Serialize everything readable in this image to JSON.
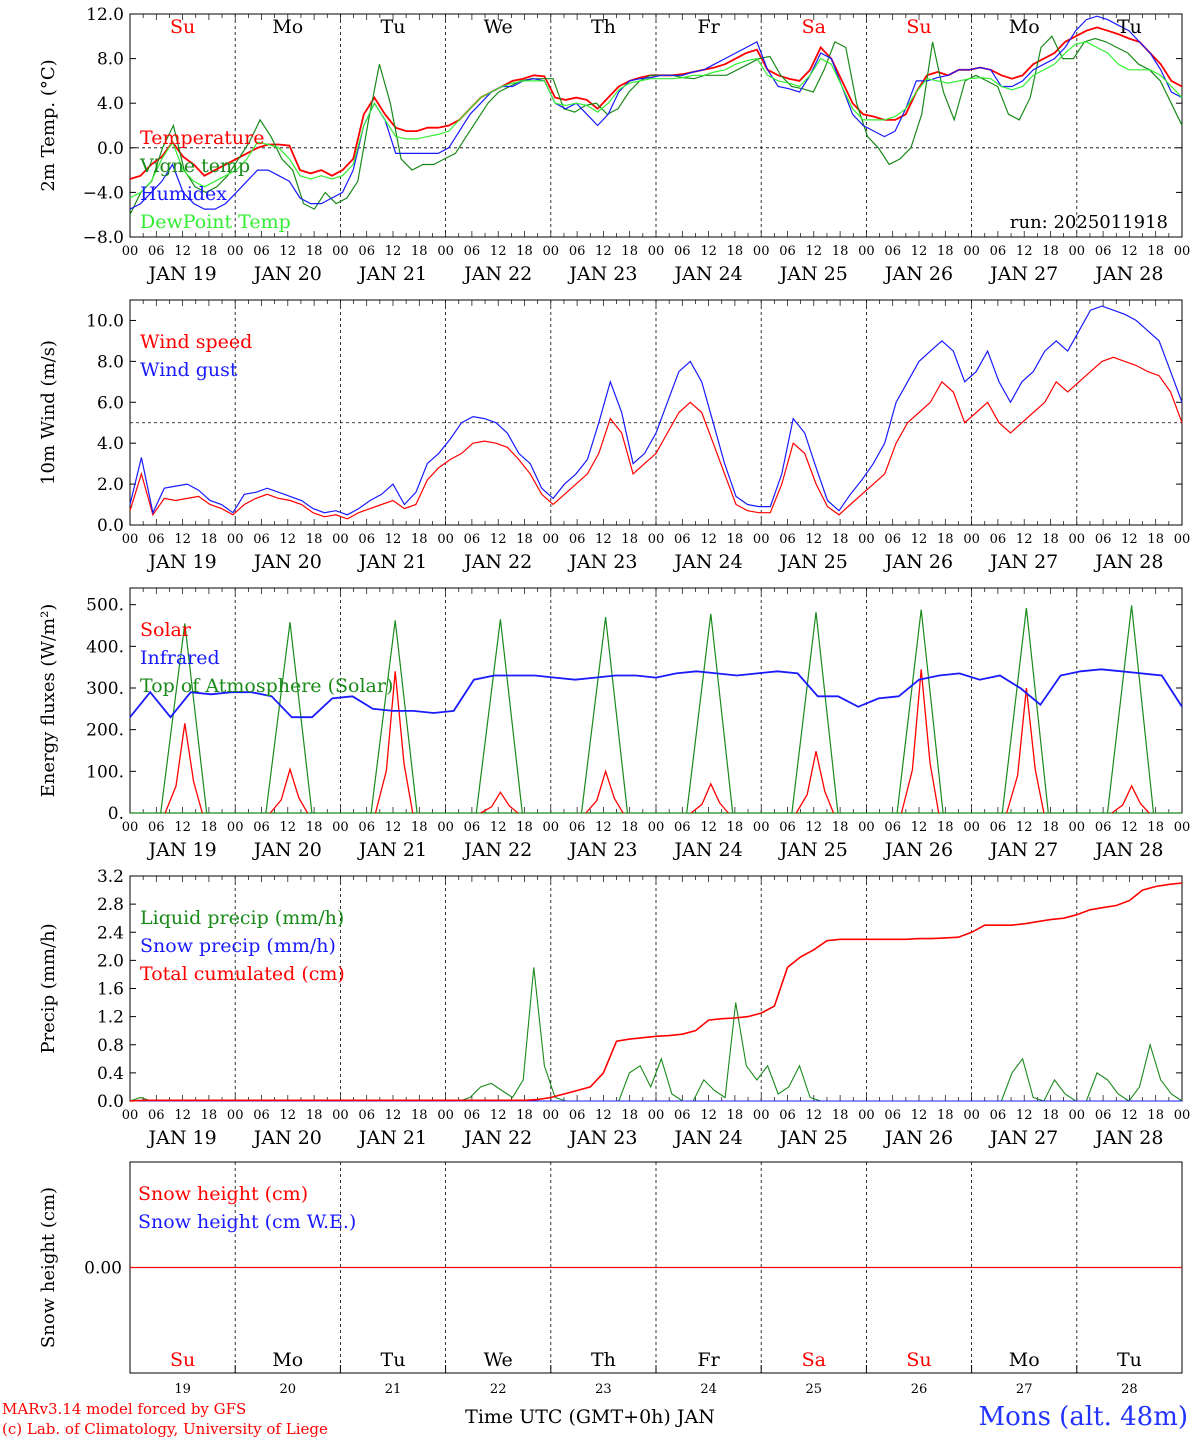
{
  "run_label": "run: 2025011918",
  "footer": {
    "credit_line1": "MARv3.14 model forced by GFS",
    "credit_line2": "(c) Lab. of Climatology, University of Liege",
    "xlabel": "Time UTC (GMT+0h) JAN",
    "station": "Mons (alt. 48m)"
  },
  "days": {
    "names": [
      "Su",
      "Mo",
      "Tu",
      "We",
      "Th",
      "Fr",
      "Sa",
      "Su",
      "Mo",
      "Tu"
    ],
    "weekend_flags": [
      true,
      false,
      false,
      false,
      false,
      false,
      true,
      true,
      false,
      false
    ],
    "dates": [
      "JAN 19",
      "JAN 20",
      "JAN 21",
      "JAN 22",
      "JAN 23",
      "JAN 24",
      "JAN 25",
      "JAN 26",
      "JAN 27",
      "JAN 28"
    ],
    "day_numbers": [
      "19",
      "20",
      "21",
      "22",
      "23",
      "24",
      "25",
      "26",
      "27",
      "28"
    ],
    "hour_ticks": [
      "00",
      "06",
      "12",
      "18"
    ],
    "end_tick": "00"
  },
  "colors": {
    "red": "#ff0000",
    "dark_green": "#1a8a1a",
    "blue": "#1a1aff",
    "light_green": "#33ee33",
    "weekend": "#ff0000",
    "weekday": "#000000"
  },
  "chart_data": [
    {
      "type": "line",
      "ylabel": "2m Temp. (°C)",
      "ylim": [
        -8,
        12
      ],
      "yticks": [
        "12.0",
        "8.0",
        "4.0",
        "0.0",
        "−4.0",
        "−8.0"
      ],
      "ref_line": 0,
      "x_hours_step": 3,
      "series": [
        {
          "name": "Temperature",
          "color": "#ff0000",
          "values": [
            -2.8,
            -2.5,
            -1.5,
            -0.8,
            0.5,
            -0.8,
            -1.5,
            -2.5,
            -2,
            -1.5,
            -1,
            -0.5,
            0,
            0.3,
            0.3,
            0.2,
            -2,
            -2.3,
            -2,
            -2.5,
            -2,
            -1,
            3,
            4.5,
            3,
            1.8,
            1.5,
            1.5,
            1.8,
            1.8,
            2,
            2.5,
            3.5,
            4.5,
            5,
            5.5,
            6,
            6.2,
            6.5,
            6.4,
            4.5,
            4.3,
            4.5,
            4.3,
            3.5,
            4.5,
            5.5,
            6,
            6.3,
            6.5,
            6.5,
            6.5,
            6.6,
            6.8,
            7,
            7.2,
            7.5,
            8,
            8.5,
            8.8,
            7,
            6.5,
            6.2,
            6,
            7,
            9,
            8,
            6,
            4,
            3,
            2.8,
            2.5,
            2.5,
            3,
            5,
            6.5,
            6.8,
            6.5,
            7,
            7,
            7.2,
            7,
            6.5,
            6.2,
            6.5,
            7.5,
            8,
            8.5,
            9.5,
            10,
            10.5,
            10.8,
            10.5,
            10.2,
            9.8,
            9.5,
            8.5,
            7.5,
            6,
            5.5
          ]
        },
        {
          "name": "Vigne temp",
          "color": "#1a8a1a",
          "values": [
            -6,
            -4,
            -3,
            0,
            2,
            -2,
            -3.5,
            -4,
            -3.5,
            -2.5,
            -1,
            0.5,
            2.5,
            1,
            -1,
            -2,
            -5,
            -5.5,
            -4,
            -5,
            -4.5,
            -3,
            2.5,
            7.5,
            4,
            -1,
            -2,
            -1.5,
            -1.5,
            -1,
            -0.5,
            1,
            2.5,
            4,
            5,
            5.5,
            6,
            6.2,
            6.2,
            6.2,
            3.5,
            3.2,
            3.8,
            4,
            3,
            3.5,
            5,
            6,
            6.5,
            6.5,
            6.5,
            6.3,
            6.2,
            6.5,
            6.5,
            6.5,
            7,
            7.5,
            8,
            8.2,
            6.5,
            5.5,
            5.3,
            5,
            7,
            9.5,
            9,
            4,
            1,
            0,
            -1.5,
            -1,
            0,
            3,
            9.5,
            5,
            2.5,
            6,
            6.5,
            6,
            5.5,
            3,
            2.5,
            4.5,
            9,
            10,
            8,
            8,
            9.5,
            9.8,
            9.5,
            9,
            8.5,
            7.5,
            7,
            6,
            4,
            2
          ]
        },
        {
          "name": "Humidex",
          "color": "#1a1aff",
          "values": [
            -5.5,
            -5,
            -4,
            -3,
            -1.5,
            -4,
            -5,
            -5.5,
            -5.5,
            -5,
            -4,
            -3,
            -2,
            -2,
            -2.5,
            -3,
            -4.5,
            -5,
            -5,
            -4.5,
            -4,
            -2,
            2,
            4,
            2.5,
            -0.5,
            -0.5,
            -0.5,
            -0.5,
            -0.5,
            0,
            1.5,
            3,
            4,
            5,
            5.5,
            5.5,
            6,
            6.2,
            6,
            4,
            3.5,
            4,
            3,
            2,
            3,
            5,
            6,
            6.2,
            6.3,
            6.5,
            6.5,
            6.5,
            6.8,
            7,
            7.5,
            8,
            8.5,
            9,
            9.5,
            7,
            5.5,
            5.3,
            5,
            6.5,
            8.5,
            8,
            5.5,
            3,
            2,
            1.5,
            1,
            1.5,
            3.5,
            6,
            6,
            6.3,
            6.5,
            7,
            7,
            7.2,
            7,
            5.5,
            5.5,
            6,
            7,
            7.5,
            8,
            9,
            10.5,
            11.5,
            11.8,
            11.5,
            11,
            10.5,
            9.5,
            8.5,
            7,
            5,
            4.5
          ]
        },
        {
          "name": "DewPoint Temp",
          "color": "#33ee33",
          "values": [
            -4.5,
            -4,
            -3,
            -1,
            0.5,
            -2,
            -3,
            -3.5,
            -3,
            -2.5,
            -2,
            -1,
            0.5,
            0.3,
            0,
            -1,
            -2.5,
            -2.8,
            -2.5,
            -2.8,
            -2.5,
            -1.5,
            2,
            4,
            2.5,
            1,
            0.8,
            0.8,
            1,
            1.2,
            1.5,
            2.5,
            3.5,
            4.5,
            5,
            5.5,
            5.8,
            6,
            6,
            6,
            4,
            3.8,
            4,
            3.8,
            3.2,
            4,
            5.2,
            5.8,
            6,
            6.2,
            6.2,
            6.2,
            6.3,
            6.5,
            6.5,
            6.8,
            7,
            7.5,
            7.8,
            8,
            6.5,
            6,
            5.8,
            5.5,
            6.5,
            8,
            7.5,
            5.5,
            3.5,
            2.5,
            2.5,
            2.5,
            2.8,
            3.5,
            5,
            6.2,
            6,
            5.8,
            6,
            6.2,
            6.3,
            6.2,
            5.5,
            5.2,
            5.5,
            6.5,
            7,
            7.5,
            8.5,
            9.3,
            9.5,
            9,
            8.5,
            7.5,
            7,
            7,
            7,
            6.5,
            5.5,
            4.5
          ]
        }
      ],
      "legend": [
        "Temperature",
        "Vigne temp",
        "Humidex",
        "DewPoint Temp"
      ],
      "legend_colors": [
        "#ff0000",
        "#1a8a1a",
        "#1a1aff",
        "#33ee33"
      ]
    },
    {
      "type": "line",
      "ylabel": "10m Wind (m/s)",
      "ylim": [
        0,
        11
      ],
      "yticks": [
        "10.0",
        "8.0",
        "6.0",
        "4.0",
        "2.0",
        "0.0"
      ],
      "ref_line": 5,
      "x_hours_step": 3,
      "series": [
        {
          "name": "Wind speed",
          "color": "#ff0000",
          "values": [
            0.7,
            2.5,
            0.5,
            1.3,
            1.2,
            1.3,
            1.4,
            1,
            0.8,
            0.5,
            1,
            1.3,
            1.5,
            1.3,
            1.2,
            1,
            0.6,
            0.4,
            0.5,
            0.3,
            0.6,
            0.8,
            1,
            1.2,
            0.8,
            1,
            2.2,
            2.8,
            3.2,
            3.5,
            4,
            4.1,
            4,
            3.8,
            3.2,
            2.5,
            1.5,
            1,
            1.5,
            2,
            2.5,
            3.5,
            5.2,
            4.5,
            2.5,
            3,
            3.5,
            4.5,
            5.5,
            6,
            5.5,
            4,
            2.5,
            1,
            0.7,
            0.6,
            0.6,
            2,
            4,
            3.5,
            2,
            0.9,
            0.5,
            1,
            1.5,
            2,
            2.5,
            4,
            5,
            5.5,
            6,
            7,
            6.5,
            5,
            5.5,
            6,
            5,
            4.5,
            5,
            5.5,
            6,
            7,
            6.5,
            7,
            7.5,
            8,
            8.2,
            8,
            7.8,
            7.5,
            7.3,
            6.5,
            5
          ]
        },
        {
          "name": "Wind gust",
          "color": "#1a1aff",
          "values": [
            1,
            3.3,
            0.6,
            1.8,
            1.9,
            2,
            1.7,
            1.2,
            1,
            0.6,
            1.5,
            1.6,
            1.8,
            1.6,
            1.4,
            1.2,
            0.8,
            0.6,
            0.7,
            0.5,
            0.8,
            1.2,
            1.5,
            2,
            1,
            1.6,
            3,
            3.5,
            4.2,
            5,
            5.3,
            5.2,
            5,
            4.5,
            3.5,
            3,
            1.8,
            1.3,
            2,
            2.5,
            3.2,
            5,
            7,
            5.5,
            3,
            3.5,
            4.5,
            6,
            7.5,
            8,
            7,
            5,
            3,
            1.4,
            1,
            0.9,
            0.9,
            2.5,
            5.2,
            4.5,
            2.8,
            1.2,
            0.7,
            1.5,
            2.2,
            3,
            4,
            6,
            7,
            8,
            8.5,
            9,
            8.5,
            7,
            7.5,
            8.5,
            7,
            6,
            7,
            7.5,
            8.5,
            9,
            8.5,
            9.5,
            10.5,
            10.7,
            10.5,
            10.3,
            10,
            9.5,
            9,
            7.5,
            6
          ]
        }
      ],
      "legend": [
        "Wind speed",
        "Wind gust"
      ],
      "legend_colors": [
        "#ff0000",
        "#1a1aff"
      ]
    },
    {
      "type": "line",
      "ylabel": "Energy fluxes (W/m²)",
      "ylim": [
        0,
        540
      ],
      "yticks": [
        "500.",
        "400.",
        "300.",
        "200.",
        "100.",
        "0."
      ],
      "ref_line": null,
      "x_hours_step": 3,
      "solar_peaks": [
        215,
        105,
        340,
        50,
        100,
        70,
        148,
        345,
        300,
        65
      ],
      "toa_peaks": [
        455,
        458,
        462,
        465,
        470,
        478,
        482,
        488,
        492,
        498
      ],
      "infrared": [
        230,
        290,
        230,
        290,
        285,
        290,
        290,
        280,
        230,
        230,
        275,
        280,
        250,
        245,
        245,
        240,
        245,
        320,
        330,
        330,
        330,
        325,
        320,
        325,
        330,
        330,
        325,
        335,
        340,
        335,
        330,
        335,
        340,
        335,
        280,
        280,
        255,
        275,
        280,
        320,
        330,
        335,
        320,
        330,
        300,
        260,
        330,
        340,
        345,
        340,
        335,
        330,
        255
      ],
      "series": [
        {
          "name": "Solar",
          "color": "#ff0000"
        },
        {
          "name": "Infrared",
          "color": "#1a1aff"
        },
        {
          "name": "Top of Atmosphere (Solar)",
          "color": "#1a8a1a"
        }
      ],
      "legend": [
        "Solar",
        "Infrared",
        "Top of Atmosphere (Solar)"
      ],
      "legend_colors": [
        "#ff0000",
        "#1a1aff",
        "#1a8a1a"
      ]
    },
    {
      "type": "line",
      "ylabel": "Precip (mm/h)",
      "ylim": [
        0,
        3.2
      ],
      "yticks": [
        "3.2",
        "2.8",
        "2.4",
        "2.0",
        "1.6",
        "1.2",
        "0.8",
        "0.4",
        "0.0"
      ],
      "ref_line": null,
      "x_hours_step": 3,
      "series": [
        {
          "name": "Liquid precip (mm/h)",
          "color": "#1a8a1a",
          "values": [
            0,
            0.05,
            0,
            0,
            0,
            0,
            0,
            0,
            0,
            0,
            0,
            0,
            0,
            0,
            0,
            0,
            0,
            0,
            0,
            0,
            0,
            0,
            0,
            0,
            0,
            0,
            0,
            0,
            0,
            0,
            0,
            0,
            0.05,
            0.2,
            0.25,
            0.15,
            0.05,
            0.3,
            1.9,
            0.5,
            0.05,
            0,
            0,
            0,
            0,
            0,
            0,
            0.4,
            0.5,
            0.2,
            0.6,
            0.1,
            0,
            0,
            0.3,
            0.15,
            0.05,
            1.4,
            0.5,
            0.3,
            0.5,
            0.1,
            0.2,
            0.5,
            0.05,
            0,
            0,
            0,
            0,
            0,
            0,
            0,
            0,
            0,
            0,
            0,
            0,
            0,
            0,
            0,
            0,
            0,
            0,
            0.4,
            0.6,
            0.05,
            0,
            0.3,
            0.1,
            0,
            0,
            0.4,
            0.3,
            0.1,
            0,
            0.2,
            0.8,
            0.3,
            0.1,
            0
          ]
        },
        {
          "name": "Snow precip (mm/h)",
          "color": "#1a1aff",
          "values": [
            0,
            0
          ]
        },
        {
          "name": "Total cumulated (cm)",
          "color": "#ff0000",
          "values": [
            0,
            0.01,
            0.01,
            0.01,
            0.01,
            0.01,
            0.01,
            0.01,
            0.01,
            0.01,
            0.01,
            0.01,
            0.01,
            0.01,
            0.01,
            0.01,
            0.01,
            0.01,
            0.01,
            0.01,
            0.01,
            0.01,
            0.01,
            0.01,
            0.01,
            0.01,
            0.01,
            0.01,
            0.01,
            0.01,
            0.01,
            0.02,
            0.05,
            0.1,
            0.15,
            0.2,
            0.4,
            0.85,
            0.88,
            0.9,
            0.92,
            0.93,
            0.95,
            1.0,
            1.15,
            1.17,
            1.18,
            1.2,
            1.25,
            1.35,
            1.9,
            2.05,
            2.15,
            2.28,
            2.3,
            2.3,
            2.3,
            2.3,
            2.3,
            2.3,
            2.31,
            2.31,
            2.32,
            2.33,
            2.4,
            2.5,
            2.5,
            2.5,
            2.52,
            2.55,
            2.58,
            2.6,
            2.65,
            2.72,
            2.75,
            2.78,
            2.85,
            3.0,
            3.05,
            3.08,
            3.1
          ]
        }
      ],
      "legend": [
        "Liquid precip (mm/h)",
        "Snow precip (mm/h)",
        "Total cumulated (cm)"
      ],
      "legend_colors": [
        "#1a8a1a",
        "#1a1aff",
        "#ff0000"
      ]
    },
    {
      "type": "line",
      "ylabel": "Snow height (cm)",
      "ylim": [
        -1,
        1
      ],
      "yticks": [
        "0.00"
      ],
      "ref_line": null,
      "series": [
        {
          "name": "Snow height (cm)",
          "color": "#ff0000",
          "values": [
            0,
            0
          ]
        },
        {
          "name": "Snow height (cm W.E.)",
          "color": "#1a1aff",
          "values": [
            0,
            0
          ]
        }
      ],
      "legend": [
        "Snow height (cm)",
        "Snow height (cm W.E.)"
      ],
      "legend_colors": [
        "#ff0000",
        "#1a1aff"
      ]
    }
  ]
}
